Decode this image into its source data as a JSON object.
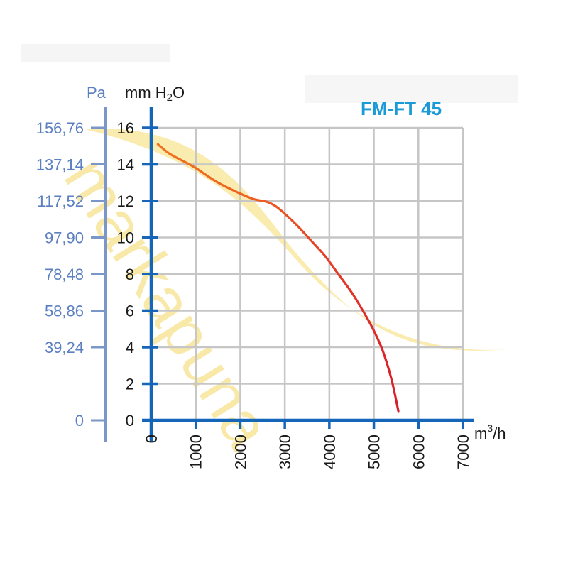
{
  "chart_data": {
    "type": "line",
    "title": "FM-FT 45",
    "xlabel": "m³/h",
    "x_unit_base": "m",
    "x_unit_sup": "3",
    "x_unit_tail": "/h",
    "ylabel_pa": "Pa",
    "ylabel_mm_base": "mm H",
    "ylabel_mm_sub": "2",
    "ylabel_mm_tail": "O",
    "xlim": [
      0,
      7000
    ],
    "ylim": [
      0,
      16
    ],
    "x_ticks": [
      "0",
      "1000",
      "2000",
      "3000",
      "4000",
      "5000",
      "6000",
      "7000"
    ],
    "y_ticks_mm": [
      "0",
      "2",
      "4",
      "6",
      "8",
      "10",
      "12",
      "14",
      "16"
    ],
    "y_ticks_pa": [
      {
        "label": "0",
        "mm": 0
      },
      {
        "label": "39,24",
        "mm": 4
      },
      {
        "label": "58,86",
        "mm": 6
      },
      {
        "label": "78,48",
        "mm": 8
      },
      {
        "label": "97,90",
        "mm": 10
      },
      {
        "label": "117,52",
        "mm": 12
      },
      {
        "label": "137,14",
        "mm": 14
      },
      {
        "label": "156,76",
        "mm": 16
      }
    ],
    "grid": true,
    "series": [
      {
        "x": [
          150,
          400,
          700,
          1000,
          1500,
          2000,
          2300,
          2600,
          2800,
          3000,
          3300,
          3600,
          3900,
          4200,
          4500,
          4800,
          5000,
          5200,
          5400,
          5550
        ],
        "y": [
          15.1,
          14.6,
          14.2,
          13.8,
          13.0,
          12.4,
          12.1,
          11.95,
          11.7,
          11.3,
          10.6,
          9.8,
          9.0,
          8.0,
          7.0,
          5.8,
          4.9,
          3.8,
          2.2,
          0.5
        ]
      }
    ]
  },
  "watermark": {
    "text": "markapuna",
    "color": "#f2cc35"
  },
  "colors": {
    "axis": "#1565b8",
    "pa_axis": "#7b96c8",
    "grid": "#c6c6c6",
    "curve_start": "#f0731e",
    "curve_end": "#d9202b",
    "title": "#1a9ad6"
  }
}
